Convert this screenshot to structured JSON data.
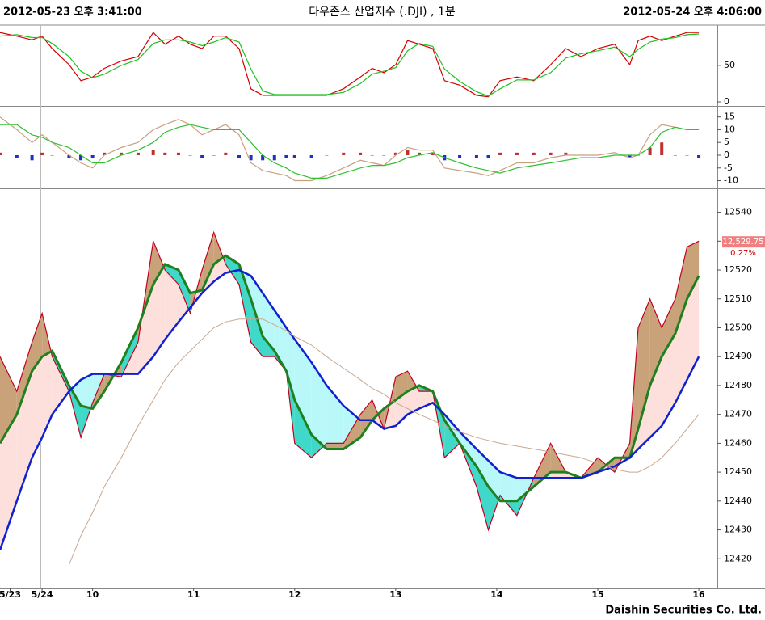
{
  "header": {
    "left": "2012-05-23 오후 3:41:00",
    "title": "다우존스 산업지수 (.DJI) , 1분",
    "right": "2012-05-24 오후 4:06:00"
  },
  "footer": "Daishin Securities Co. Ltd.",
  "chart_data": [
    {
      "type": "line",
      "xlim": [
        -25,
        401
      ],
      "ylim": [
        -4.4,
        103
      ],
      "yticks": [
        0,
        50
      ],
      "x": [
        -25,
        -15,
        -6,
        0,
        6,
        16,
        23,
        30,
        37,
        47,
        57,
        66,
        73,
        81,
        88,
        95,
        102,
        109,
        117,
        124,
        131,
        138,
        145,
        150,
        160,
        169,
        179,
        189,
        196,
        203,
        210,
        217,
        224,
        232,
        239,
        248,
        258,
        265,
        272,
        282,
        292,
        302,
        311,
        320,
        330,
        340,
        349,
        354,
        361,
        368,
        376,
        383,
        390
      ],
      "series": [
        {
          "color": "#d00000",
          "kind": "line",
          "values": [
            95,
            90,
            85,
            90,
            73,
            51,
            29,
            34,
            46,
            56,
            62,
            95,
            79,
            90,
            79,
            73,
            90,
            90,
            73,
            18,
            9,
            9,
            9,
            9,
            9,
            9,
            18,
            34,
            46,
            40,
            51,
            84,
            79,
            73,
            29,
            23,
            9,
            7,
            29,
            34,
            29,
            51,
            73,
            62,
            73,
            79,
            51,
            84,
            90,
            84,
            90,
            95,
            95
          ]
        },
        {
          "color": "#20c020",
          "kind": "line",
          "values": [
            90,
            92,
            88,
            88,
            80,
            62,
            42,
            33,
            38,
            50,
            58,
            80,
            85,
            85,
            82,
            77,
            82,
            88,
            82,
            45,
            15,
            10,
            10,
            10,
            10,
            10,
            13,
            25,
            38,
            42,
            47,
            70,
            80,
            76,
            45,
            28,
            14,
            8,
            18,
            30,
            30,
            40,
            60,
            66,
            70,
            75,
            62,
            72,
            82,
            86,
            88,
            92,
            93
          ]
        }
      ]
    },
    {
      "type": "line",
      "xlim": [
        -25,
        401
      ],
      "ylim": [
        -13,
        18.7
      ],
      "yticks": [
        15,
        10,
        5,
        0,
        -5,
        -10
      ],
      "x": [
        -25,
        -15,
        -6,
        0,
        6,
        16,
        23,
        30,
        37,
        47,
        57,
        66,
        73,
        81,
        88,
        95,
        102,
        109,
        117,
        124,
        131,
        138,
        145,
        150,
        160,
        169,
        179,
        189,
        196,
        203,
        210,
        217,
        224,
        232,
        239,
        248,
        258,
        265,
        272,
        282,
        292,
        302,
        311,
        320,
        330,
        340,
        349,
        354,
        361,
        368,
        376,
        383,
        390
      ],
      "series": [
        {
          "kind": "bar",
          "up_color": "#c03030",
          "down_color": "#2030c0",
          "values": [
            1,
            -1,
            -2,
            1,
            0,
            -1,
            -2,
            -1,
            1,
            1,
            1,
            2,
            1,
            1,
            0,
            -1,
            0,
            1,
            -1,
            -2,
            -2,
            -2,
            -1,
            -1,
            -1,
            0,
            1,
            1,
            0,
            0,
            1,
            2,
            1,
            1,
            -2,
            -1,
            -1,
            -1,
            1,
            1,
            1,
            1,
            1,
            0,
            0,
            0,
            -1,
            0,
            3,
            5,
            0,
            0,
            -1
          ]
        },
        {
          "color": "#c8a080",
          "kind": "line",
          "values": [
            15,
            10,
            5,
            8,
            5,
            0,
            -3,
            -5,
            0,
            3,
            5,
            10,
            12,
            14,
            12,
            8,
            10,
            12,
            8,
            -3,
            -6,
            -7,
            -8,
            -10,
            -10,
            -8,
            -5,
            -2,
            -3,
            -4,
            0,
            3,
            2,
            2,
            -5,
            -6,
            -7,
            -8,
            -6,
            -3,
            -3,
            -1,
            0,
            0,
            0,
            1,
            -1,
            0,
            8,
            12,
            11,
            10,
            10
          ]
        },
        {
          "color": "#30c030",
          "kind": "line",
          "values": [
            12,
            12,
            8,
            7,
            5,
            3,
            0,
            -3,
            -3,
            0,
            2,
            5,
            9,
            11,
            12,
            11,
            10,
            10,
            10,
            5,
            0,
            -3,
            -5,
            -7,
            -9,
            -9,
            -7,
            -5,
            -4,
            -4,
            -3,
            -1,
            0,
            1,
            -1,
            -3,
            -5,
            -6,
            -7,
            -5,
            -4,
            -3,
            -2,
            -1,
            -1,
            0,
            0,
            0,
            3,
            9,
            11,
            10,
            10
          ]
        }
      ]
    },
    {
      "type": "line",
      "xlim": [
        -25,
        401
      ],
      "ylim": [
        12410,
        12548
      ],
      "yticks": [
        12540,
        12530,
        12520,
        12510,
        12500,
        12490,
        12480,
        12470,
        12460,
        12450,
        12440,
        12430,
        12420
      ],
      "xticks": [
        {
          "value": -19,
          "label": "5/23"
        },
        {
          "value": 0,
          "label": "5/24"
        },
        {
          "value": 30,
          "label": "10"
        },
        {
          "value": 90,
          "label": "11"
        },
        {
          "value": 150,
          "label": "12"
        },
        {
          "value": 210,
          "label": "13"
        },
        {
          "value": 270,
          "label": "14"
        },
        {
          "value": 330,
          "label": "15"
        },
        {
          "value": 390,
          "label": "16"
        }
      ],
      "last": {
        "value": 12529.75,
        "label": "12,529.75"
      },
      "change": {
        "value": 0.27,
        "label": "0.27%"
      },
      "band_colors": [
        [
          "#c9a27a",
          "#40d8c8"
        ],
        [
          "#fde0dc",
          "#b8f8f8"
        ]
      ],
      "x": [
        -25,
        -15,
        -6,
        0,
        6,
        16,
        23,
        30,
        37,
        47,
        57,
        66,
        73,
        81,
        88,
        95,
        102,
        109,
        117,
        124,
        131,
        138,
        145,
        150,
        160,
        169,
        179,
        189,
        196,
        203,
        210,
        217,
        224,
        232,
        239,
        248,
        258,
        265,
        272,
        282,
        292,
        302,
        311,
        320,
        330,
        340,
        349,
        354,
        361,
        368,
        376,
        383,
        390
      ],
      "series": [
        {
          "color": "#c00020",
          "kind": "line",
          "values": [
            12490,
            12478,
            12495,
            12505,
            12490,
            12478,
            12462,
            12474,
            12484,
            12483,
            12495,
            12530,
            12520,
            12515,
            12505,
            12520,
            12533,
            12522,
            12515,
            12495,
            12490,
            12490,
            12485,
            12460,
            12455,
            12460,
            12460,
            12470,
            12475,
            12465,
            12483,
            12485,
            12478,
            12478,
            12455,
            12460,
            12445,
            12430,
            12442,
            12435,
            12448,
            12460,
            12450,
            12448,
            12455,
            12450,
            12460,
            12500,
            12510,
            12500,
            12510,
            12528,
            12530
          ]
        },
        {
          "color": "#208020",
          "kind": "line",
          "width": 3,
          "values": [
            12460,
            12470,
            12485,
            12490,
            12492,
            12480,
            12473,
            12472,
            12478,
            12488,
            12500,
            12515,
            12522,
            12520,
            12512,
            12513,
            12522,
            12525,
            12522,
            12510,
            12497,
            12492,
            12485,
            12475,
            12463,
            12458,
            12458,
            12462,
            12468,
            12472,
            12475,
            12478,
            12480,
            12478,
            12468,
            12460,
            12452,
            12445,
            12440,
            12440,
            12445,
            12450,
            12450,
            12448,
            12450,
            12455,
            12455,
            12465,
            12480,
            12490,
            12498,
            12510,
            12518
          ]
        },
        {
          "color": "#1020d0",
          "kind": "line",
          "width": 2.5,
          "values": [
            12423,
            12440,
            12455,
            12462,
            12470,
            12478,
            12482,
            12484,
            12484,
            12484,
            12484,
            12490,
            12496,
            12502,
            12507,
            12512,
            12516,
            12519,
            12520,
            12518,
            12512,
            12506,
            12500,
            12496,
            12488,
            12480,
            12473,
            12468,
            12468,
            12465,
            12466,
            12470,
            12472,
            12474,
            12470,
            12464,
            12458,
            12454,
            12450,
            12448,
            12448,
            12448,
            12448,
            12448,
            12450,
            12452,
            12455,
            12458,
            12462,
            12466,
            12474,
            12482,
            12490
          ]
        },
        {
          "color": "#c8a890",
          "kind": "line",
          "width": 1,
          "values": [
            null,
            null,
            null,
            null,
            null,
            12418,
            12428,
            12436,
            12445,
            12455,
            12466,
            12475,
            12482,
            12488,
            12492,
            12496,
            12500,
            12502,
            12503,
            12503,
            12503,
            12501,
            12499,
            12497,
            12494,
            12490,
            12486,
            12482,
            12479,
            12477,
            12474,
            12472,
            12470,
            12468,
            12466,
            12464,
            12462,
            12461,
            12460,
            12459,
            12458,
            12457,
            12456,
            12455,
            12453,
            12451,
            12450,
            12450,
            12452,
            12455,
            12460,
            12465,
            12470
          ]
        }
      ]
    }
  ]
}
